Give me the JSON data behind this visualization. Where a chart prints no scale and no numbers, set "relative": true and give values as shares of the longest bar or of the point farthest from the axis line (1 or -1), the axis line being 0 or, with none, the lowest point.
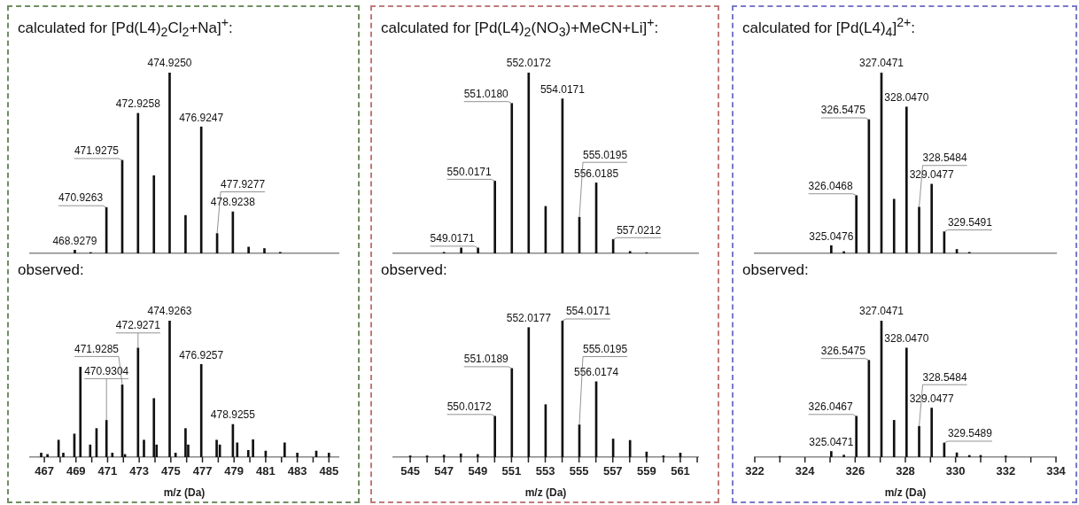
{
  "chart_data": [
    {
      "type": "bar",
      "title": "calculated for [Pd(L4)$_{2}$Cl$_{2}$+Na]$^{+}$:",
      "relative": true,
      "tick_labels": false,
      "color": "#111111",
      "xlim": [
        466.1,
        485.6
      ],
      "x": [
        468.9279,
        469.93,
        470.9263,
        471.9275,
        472.9258,
        473.93,
        474.925,
        475.93,
        476.9247,
        477.9277,
        478.9238,
        479.92,
        480.92,
        481.92
      ],
      "values": [
        0.018,
        0.005,
        0.254,
        0.515,
        0.775,
        0.43,
        1,
        0.21,
        0.7,
        0.11,
        0.23,
        0.035,
        0.027,
        0.006
      ],
      "annotations": [
        {
          "text": "468.9279",
          "x": 468.9279,
          "y": 0.018
        },
        {
          "text": "470.9263",
          "x": 470.9263,
          "y": 0.254
        },
        {
          "text": "471.9275",
          "x": 471.9275,
          "y": 0.515
        },
        {
          "text": "472.9258",
          "x": 472.9258,
          "y": 0.775
        },
        {
          "text": "474.9250",
          "x": 474.925,
          "y": 1
        },
        {
          "text": "476.9247",
          "x": 476.9247,
          "y": 0.7
        },
        {
          "text": "478.9238",
          "x": 478.9238,
          "y": 0.23
        },
        {
          "text": "477.9277",
          "x": 477.9277,
          "y": 0.11
        }
      ]
    },
    {
      "type": "bar",
      "title": "calculated for [Pd(L4)$_{2}$(NO$_{3}$)+MeCN+Li]$^{+}$:",
      "relative": true,
      "tick_labels": false,
      "color": "#111111",
      "xlim": [
        544,
        562.05
      ],
      "x": [
        547.0,
        548.02,
        549.0171,
        550.0171,
        551.018,
        552.0172,
        553.02,
        554.0171,
        555.0195,
        556.0185,
        557.0212,
        558.02,
        559.0
      ],
      "values": [
        0.006,
        0.03,
        0.03,
        0.4,
        0.83,
        1,
        0.26,
        0.855,
        0.2,
        0.39,
        0.077,
        0.011,
        0.004
      ],
      "annotations": [
        {
          "text": "549.0171",
          "x": 549.0171,
          "y": 0.03
        },
        {
          "text": "550.0171",
          "x": 550.0171,
          "y": 0.4
        },
        {
          "text": "551.0180",
          "x": 551.018,
          "y": 0.83
        },
        {
          "text": "552.0172",
          "x": 552.0172,
          "y": 1
        },
        {
          "text": "554.0171",
          "x": 554.0171,
          "y": 0.855
        },
        {
          "text": "556.0185",
          "x": 556.0185,
          "y": 0.39
        },
        {
          "text": "555.0195",
          "x": 555.0195,
          "y": 0.2
        },
        {
          "text": "557.0212",
          "x": 557.0212,
          "y": 0.077
        }
      ]
    },
    {
      "type": "bar",
      "title": "calculated for [Pd(L4)$_{4}$]$^{2+}$:",
      "relative": true,
      "tick_labels": false,
      "color": "#111111",
      "xlim": [
        322,
        334
      ],
      "x": [
        325.0476,
        325.55,
        326.0468,
        326.5475,
        327.0471,
        327.55,
        328.047,
        328.5484,
        329.0477,
        329.5491,
        330.05,
        330.55
      ],
      "values": [
        0.043,
        0.01,
        0.32,
        0.74,
        1,
        0.3,
        0.81,
        0.256,
        0.383,
        0.12,
        0.022,
        0.006
      ],
      "annotations": [
        {
          "text": "325.0476",
          "x": 325.0476,
          "y": 0.043
        },
        {
          "text": "326.0468",
          "x": 326.0468,
          "y": 0.32
        },
        {
          "text": "326.5475",
          "x": 326.5475,
          "y": 0.74
        },
        {
          "text": "327.0471",
          "x": 327.0471,
          "y": 1
        },
        {
          "text": "328.0470",
          "x": 328.047,
          "y": 0.81
        },
        {
          "text": "329.0477",
          "x": 329.0477,
          "y": 0.383
        },
        {
          "text": "328.5484",
          "x": 328.5484,
          "y": 0.256
        },
        {
          "text": "329.5491",
          "x": 329.5491,
          "y": 0.12
        }
      ]
    },
    {
      "type": "bar",
      "title": "observed:",
      "xlabel": "m/z (Da)",
      "relative": true,
      "color": "#111111",
      "xlim": [
        466.1,
        485.6
      ],
      "xticks": [
        467,
        {
          "value": 468,
          "label": null
        },
        469,
        {
          "value": 470,
          "label": null
        },
        471,
        {
          "value": 472,
          "label": null
        },
        473,
        {
          "value": 474,
          "label": null
        },
        475,
        {
          "value": 476,
          "label": null
        },
        477,
        {
          "value": 478,
          "label": null
        },
        479,
        {
          "value": 480,
          "label": null
        },
        481,
        {
          "value": 482,
          "label": null
        },
        483,
        {
          "value": 484,
          "label": null
        },
        485
      ],
      "x": [
        466.8,
        467.2,
        467.9,
        468.2,
        468.9,
        469.28,
        469.9,
        470.3,
        470.9304,
        471.3,
        471.9285,
        472.1,
        472.9271,
        473.3,
        473.93,
        474.1,
        474.9263,
        475.3,
        475.93,
        476.1,
        476.9257,
        477.9,
        478.1,
        478.9255,
        479.2,
        479.9,
        480.2,
        481.0,
        482.2,
        483.0,
        484.2,
        485.0
      ],
      "values": [
        0.03,
        0.02,
        0.125,
        0.03,
        0.17,
        0.66,
        0.09,
        0.21,
        0.27,
        0.03,
        0.53,
        0.02,
        0.8,
        0.125,
        0.43,
        0.09,
        1,
        0.03,
        0.21,
        0.09,
        0.68,
        0.125,
        0.09,
        0.24,
        0.105,
        0.05,
        0.128,
        0.045,
        0.105,
        0.03,
        0.045,
        0.03
      ],
      "annotations": [
        {
          "text": "470.9304",
          "x": 470.9304,
          "y": 0.27
        },
        {
          "text": "471.9285",
          "x": 471.9285,
          "y": 0.53
        },
        {
          "text": "472.9271",
          "x": 472.9271,
          "y": 0.8
        },
        {
          "text": "474.9263",
          "x": 474.9263,
          "y": 1
        },
        {
          "text": "476.9257",
          "x": 476.9257,
          "y": 0.68
        },
        {
          "text": "478.9255",
          "x": 478.9255,
          "y": 0.24
        }
      ]
    },
    {
      "type": "bar",
      "title": "observed:",
      "xlabel": "m/z (Da)",
      "relative": true,
      "color": "#111111",
      "xlim": [
        544,
        562.05
      ],
      "xticks": [
        545,
        {
          "value": 546,
          "label": null
        },
        547,
        {
          "value": 548,
          "label": null
        },
        549,
        {
          "value": 550,
          "label": null
        },
        551,
        {
          "value": 552,
          "label": null
        },
        553,
        {
          "value": 554,
          "label": null
        },
        555,
        {
          "value": 556,
          "label": null
        },
        557,
        {
          "value": 558,
          "label": null
        },
        559,
        {
          "value": 560,
          "label": null
        },
        561,
        {
          "value": 562,
          "label": null
        }
      ],
      "x": [
        545,
        546,
        547,
        548,
        549,
        550.0172,
        551.0189,
        552.0177,
        553.02,
        554.0171,
        555.0195,
        556.0174,
        557.02,
        558.02,
        559.0,
        560,
        561
      ],
      "values": [
        0.01,
        0.01,
        0.015,
        0.025,
        0.02,
        0.3,
        0.65,
        0.95,
        0.385,
        1,
        0.237,
        0.553,
        0.133,
        0.123,
        0.038,
        0.01,
        0.03
      ],
      "annotations": [
        {
          "text": "550.0172",
          "x": 550.0172,
          "y": 0.3
        },
        {
          "text": "551.0189",
          "x": 551.0189,
          "y": 0.65
        },
        {
          "text": "552.0177",
          "x": 552.0177,
          "y": 0.95
        },
        {
          "text": "554.0171",
          "x": 554.0171,
          "y": 1
        },
        {
          "text": "556.0174",
          "x": 556.0174,
          "y": 0.553
        },
        {
          "text": "555.0195",
          "x": 555.0195,
          "y": 0.237
        }
      ]
    },
    {
      "type": "bar",
      "title": "observed:",
      "xlabel": "m/z (Da)",
      "relative": true,
      "color": "#111111",
      "xlim": [
        322,
        334
      ],
      "xticks": [
        322,
        {
          "value": 323,
          "label": null
        },
        324,
        {
          "value": 325,
          "label": null
        },
        326,
        {
          "value": 327,
          "label": null
        },
        328,
        {
          "value": 329,
          "label": null
        },
        330,
        {
          "value": 331,
          "label": null
        },
        332,
        {
          "value": 333,
          "label": null
        },
        334
      ],
      "x": [
        323,
        325.0471,
        325.55,
        326.0467,
        326.5475,
        327.0471,
        327.55,
        328.047,
        328.5484,
        329.0477,
        329.5489,
        330.05,
        330.55,
        331,
        332
      ],
      "values": [
        0.006,
        0.042,
        0.015,
        0.3,
        0.71,
        1,
        0.27,
        0.8,
        0.226,
        0.36,
        0.104,
        0.032,
        0.013,
        0.013,
        0.009
      ],
      "annotations": [
        {
          "text": "325.0471",
          "x": 325.0471,
          "y": 0.042
        },
        {
          "text": "326.0467",
          "x": 326.0467,
          "y": 0.3
        },
        {
          "text": "326.5475",
          "x": 326.5475,
          "y": 0.71
        },
        {
          "text": "327.0471",
          "x": 327.0471,
          "y": 1
        },
        {
          "text": "328.0470",
          "x": 328.047,
          "y": 0.8
        },
        {
          "text": "329.0477",
          "x": 329.0477,
          "y": 0.36
        },
        {
          "text": "328.5484",
          "x": 328.5484,
          "y": 0.226
        },
        {
          "text": "329.5489",
          "x": 329.5489,
          "y": 0.104
        }
      ]
    }
  ]
}
